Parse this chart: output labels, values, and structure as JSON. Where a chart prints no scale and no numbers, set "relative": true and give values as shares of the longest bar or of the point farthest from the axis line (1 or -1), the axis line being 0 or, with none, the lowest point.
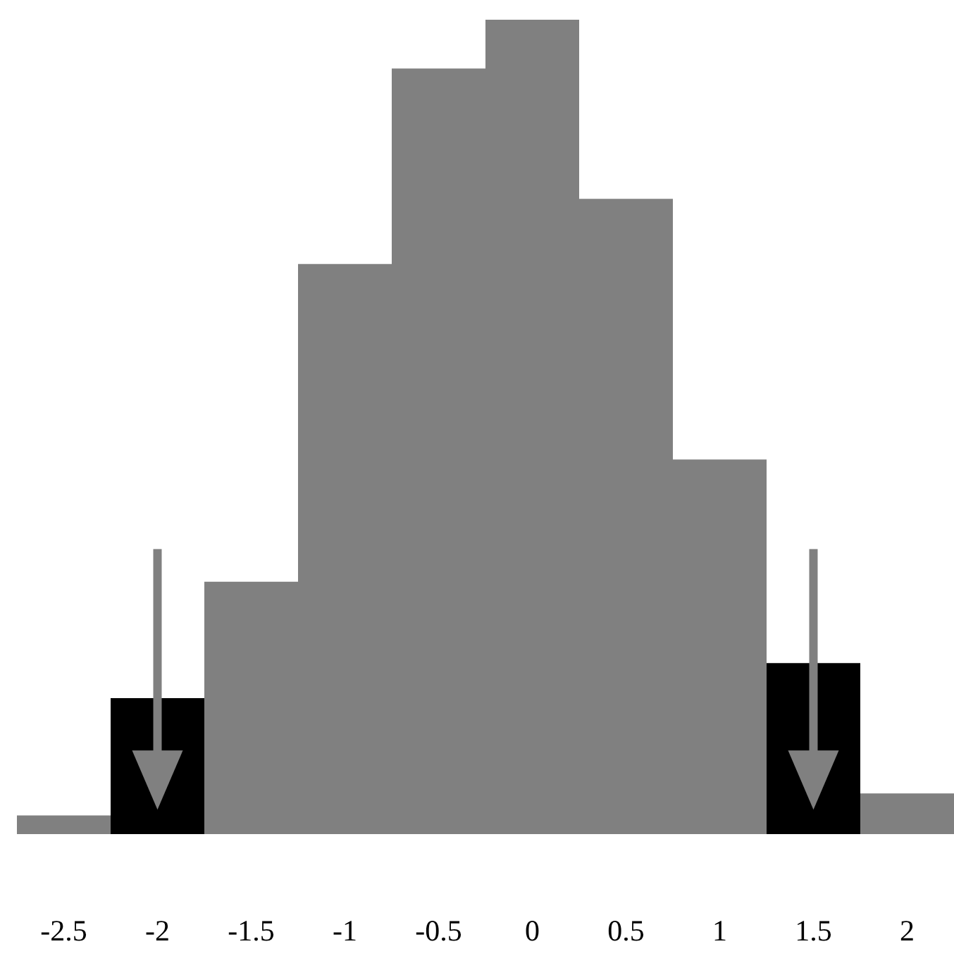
{
  "chart_data": {
    "type": "bar",
    "relative": true,
    "categories": [
      "-2.5",
      "-2",
      "-1.5",
      "-1",
      "-0.5",
      "0",
      "0.5",
      "1",
      "1.5",
      "2"
    ],
    "values": [
      0.023,
      0.167,
      0.31,
      0.7,
      0.94,
      1,
      0.78,
      0.46,
      0.21,
      0.05
    ],
    "colors": [
      "#808080",
      "#000000",
      "#808080",
      "#808080",
      "#808080",
      "#808080",
      "#808080",
      "#808080",
      "#000000",
      "#808080"
    ],
    "grid": false
  }
}
